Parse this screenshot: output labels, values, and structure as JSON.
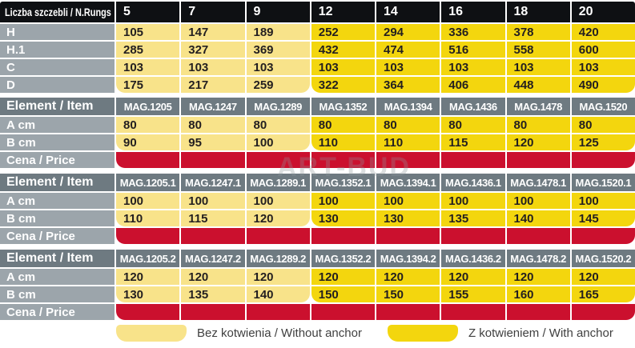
{
  "colors": {
    "black_header": "#0e1013",
    "section_header_gray": "#6e7a81",
    "label_gray": "#9ca5ab",
    "light_yellow": "#f8e38a",
    "gold_yellow": "#f3d60e",
    "price_red": "#cb102e",
    "text_dark": "#231f20"
  },
  "anchor_split_index": 3,
  "rungs_table": {
    "header_label": "Liczba szczebli / N.Rungs",
    "columns": [
      "5",
      "7",
      "9",
      "12",
      "14",
      "16",
      "18",
      "20"
    ],
    "rows": [
      {
        "label": "H",
        "values": [
          "105",
          "147",
          "189",
          "252",
          "294",
          "336",
          "378",
          "420"
        ]
      },
      {
        "label": "H.1",
        "values": [
          "285",
          "327",
          "369",
          "432",
          "474",
          "516",
          "558",
          "600"
        ]
      },
      {
        "label": "C",
        "values": [
          "103",
          "103",
          "103",
          "103",
          "103",
          "103",
          "103",
          "103"
        ]
      },
      {
        "label": "D",
        "values": [
          "175",
          "217",
          "259",
          "322",
          "364",
          "406",
          "448",
          "490"
        ]
      }
    ]
  },
  "item_sections": [
    {
      "header_label": "Element / Item",
      "price_label": "Cena / Price",
      "columns": [
        "MAG.1205",
        "MAG.1247",
        "MAG.1289",
        "MAG.1352",
        "MAG.1394",
        "MAG.1436",
        "MAG.1478",
        "MAG.1520"
      ],
      "rows": [
        {
          "label": "A cm",
          "values": [
            "80",
            "80",
            "80",
            "80",
            "80",
            "80",
            "80",
            "80"
          ]
        },
        {
          "label": "B cm",
          "values": [
            "90",
            "95",
            "100",
            "110",
            "110",
            "115",
            "120",
            "125"
          ]
        }
      ]
    },
    {
      "header_label": "Element / Item",
      "price_label": "Cena / Price",
      "columns": [
        "MAG.1205.1",
        "MAG.1247.1",
        "MAG.1289.1",
        "MAG.1352.1",
        "MAG.1394.1",
        "MAG.1436.1",
        "MAG.1478.1",
        "MAG.1520.1"
      ],
      "rows": [
        {
          "label": "A cm",
          "values": [
            "100",
            "100",
            "100",
            "100",
            "100",
            "100",
            "100",
            "100"
          ]
        },
        {
          "label": "B cm",
          "values": [
            "110",
            "115",
            "120",
            "130",
            "130",
            "135",
            "140",
            "145"
          ]
        }
      ]
    },
    {
      "header_label": "Element / Item",
      "price_label": "Cena / Price",
      "columns": [
        "MAG.1205.2",
        "MAG.1247.2",
        "MAG.1289.2",
        "MAG.1352.2",
        "MAG.1394.2",
        "MAG.1436.2",
        "MAG.1478.2",
        "MAG.1520.2"
      ],
      "rows": [
        {
          "label": "A cm",
          "values": [
            "120",
            "120",
            "120",
            "120",
            "120",
            "120",
            "120",
            "120"
          ]
        },
        {
          "label": "B cm",
          "values": [
            "130",
            "135",
            "140",
            "150",
            "150",
            "155",
            "160",
            "165"
          ]
        }
      ]
    }
  ],
  "legend": {
    "without_anchor": "Bez kotwienia / Without anchor",
    "with_anchor": "Z kotwieniem / With anchor"
  },
  "watermark": "ART-BUD"
}
